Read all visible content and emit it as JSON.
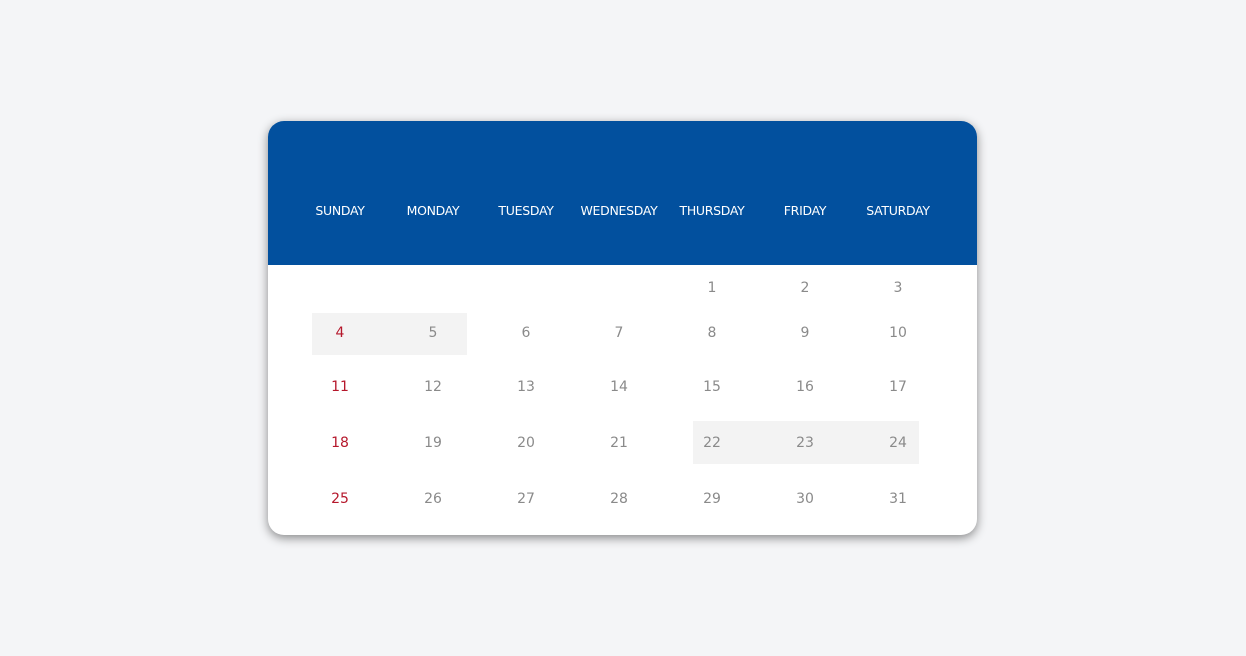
{
  "calendar": {
    "weekdays": [
      "SUNDAY",
      "MONDAY",
      "TUESDAY",
      "WEDNESDAY",
      "THURSDAY",
      "FRIDAY",
      "SATURDAY"
    ],
    "weeks": [
      [
        null,
        null,
        null,
        null,
        "1",
        "2",
        "3"
      ],
      [
        "4",
        "5",
        "6",
        "7",
        "8",
        "9",
        "10"
      ],
      [
        "11",
        "12",
        "13",
        "14",
        "15",
        "16",
        "17"
      ],
      [
        "18",
        "19",
        "20",
        "21",
        "22",
        "23",
        "24"
      ],
      [
        "25",
        "26",
        "27",
        "28",
        "29",
        "30",
        "31"
      ]
    ],
    "highlighted_ranges": [
      [
        "4",
        "5"
      ],
      [
        "22",
        "24"
      ]
    ],
    "colors": {
      "header": "#02509e",
      "sunday": "#b5172b",
      "day": "#8a8a8a",
      "highlight": "#f3f3f3",
      "background": "#f4f5f7"
    }
  }
}
